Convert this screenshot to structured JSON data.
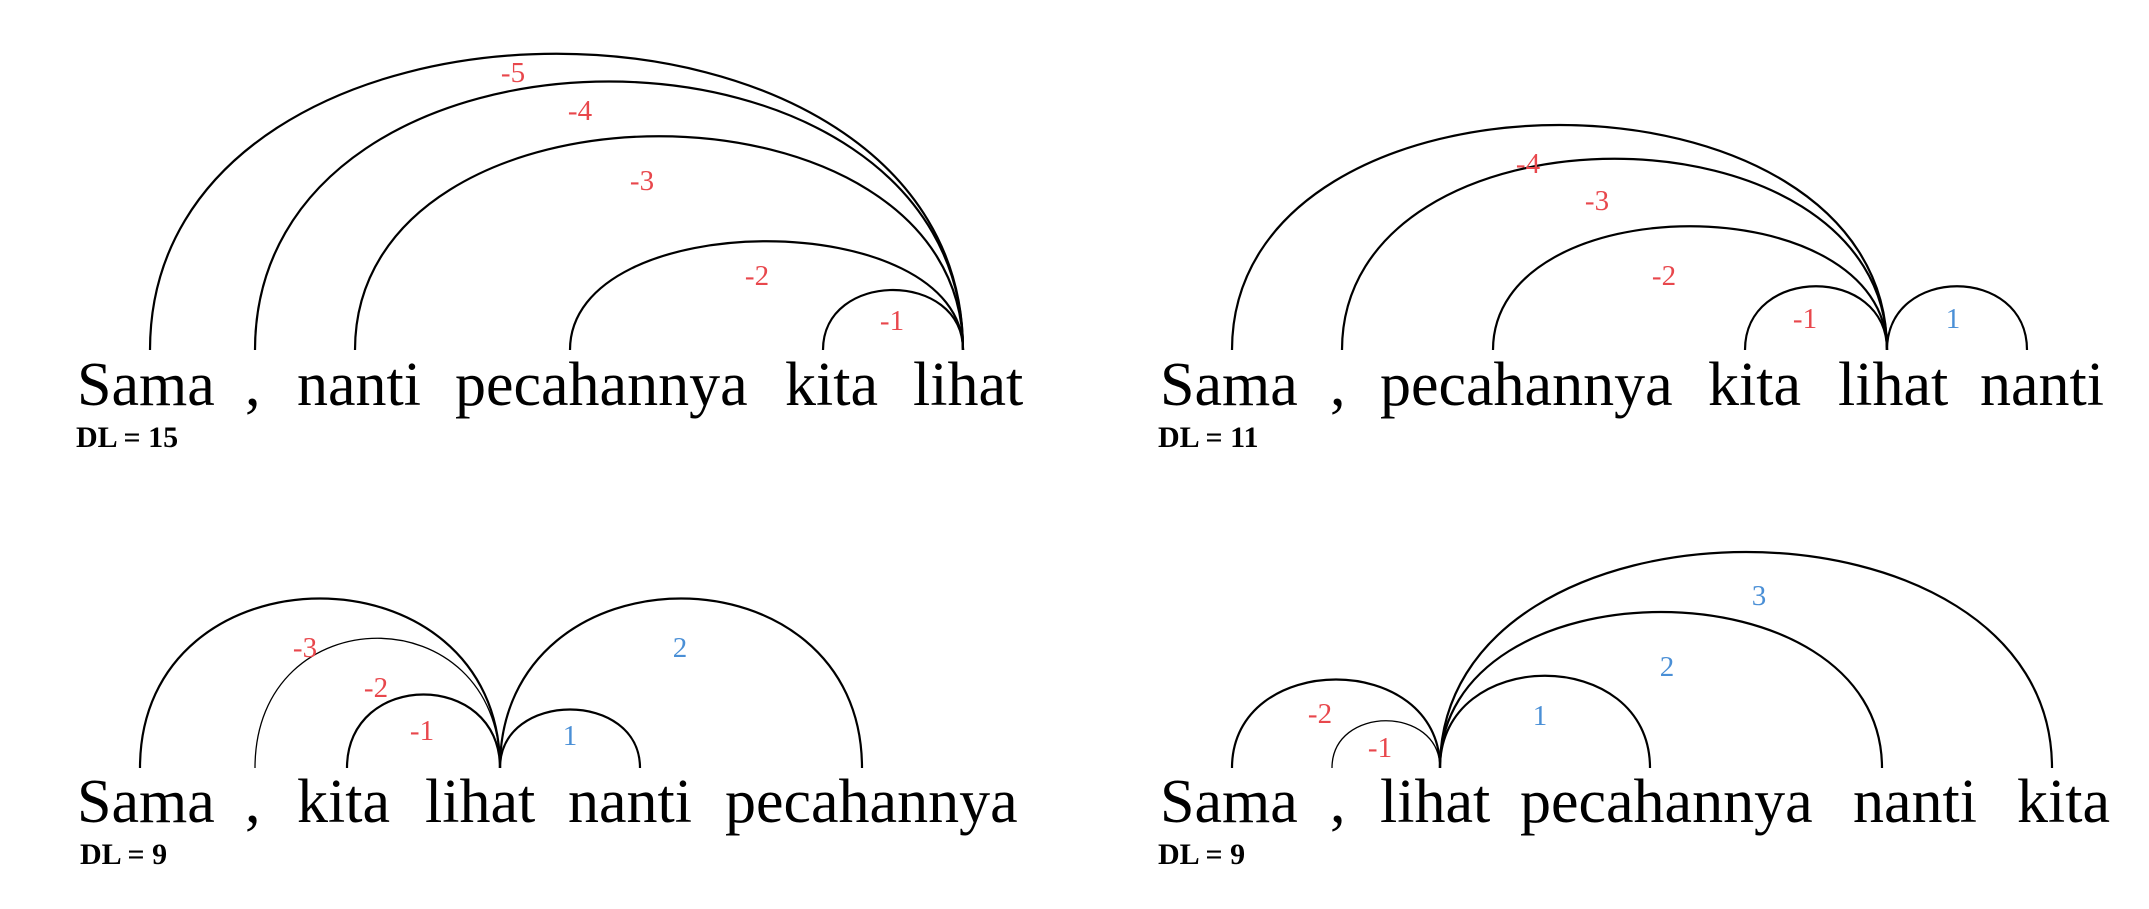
{
  "colors": {
    "negative": "#e8474c",
    "positive": "#4a8fd6",
    "arc": "#000000"
  },
  "panels": [
    {
      "words": [
        "Sama",
        ",",
        "nanti",
        "pecahannya",
        "kita",
        "lihat"
      ],
      "dl_text": "DL = 15",
      "arcs": [
        {
          "head": 5,
          "dep": 0,
          "label": "-5"
        },
        {
          "head": 5,
          "dep": 1,
          "label": "-4"
        },
        {
          "head": 5,
          "dep": 2,
          "label": "-3"
        },
        {
          "head": 5,
          "dep": 3,
          "label": "-2"
        },
        {
          "head": 5,
          "dep": 4,
          "label": "-1"
        }
      ]
    },
    {
      "words": [
        "Sama",
        ",",
        "pecahannya",
        "kita",
        "lihat",
        "nanti"
      ],
      "dl_text": "DL = 11",
      "arcs": [
        {
          "head": 4,
          "dep": 0,
          "label": "-4"
        },
        {
          "head": 4,
          "dep": 1,
          "label": "-3"
        },
        {
          "head": 4,
          "dep": 2,
          "label": "-2"
        },
        {
          "head": 4,
          "dep": 3,
          "label": "-1"
        },
        {
          "head": 4,
          "dep": 5,
          "label": "1"
        }
      ]
    },
    {
      "words": [
        "Sama",
        ",",
        "kita",
        "lihat",
        "nanti",
        "pecahannya"
      ],
      "dl_text": "DL = 9",
      "arcs": [
        {
          "head": 3,
          "dep": 0,
          "label": "-3"
        },
        {
          "head": 3,
          "dep": 1,
          "label": "-2"
        },
        {
          "head": 3,
          "dep": 2,
          "label": "-1"
        },
        {
          "head": 3,
          "dep": 4,
          "label": "1"
        },
        {
          "head": 3,
          "dep": 5,
          "label": "2"
        }
      ]
    },
    {
      "words": [
        "Sama",
        ",",
        "lihat",
        "pecahannya",
        "nanti",
        "kita"
      ],
      "dl_text": "DL = 9",
      "arcs": [
        {
          "head": 2,
          "dep": 0,
          "label": "-2"
        },
        {
          "head": 2,
          "dep": 1,
          "label": "-1"
        },
        {
          "head": 2,
          "dep": 3,
          "label": "1"
        },
        {
          "head": 2,
          "dep": 4,
          "label": "2"
        },
        {
          "head": 2,
          "dep": 5,
          "label": "3"
        }
      ]
    }
  ]
}
